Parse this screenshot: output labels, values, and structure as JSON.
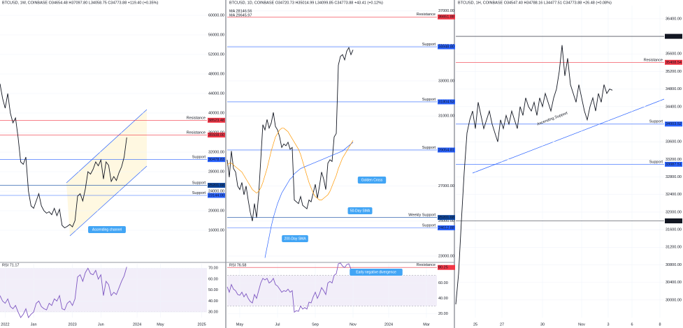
{
  "chart_data": [
    {
      "type": "line",
      "title": "BTCUSD, 1W, COINBASE O34654.48 H37097.80 L34058.75 C34773.88 +119.40 (+0.35%)",
      "xlim": [
        0,
        80
      ],
      "ylim": [
        10000,
        62000
      ],
      "grid": true,
      "yticks": [
        {
          "value": 16000,
          "label": "16000.00"
        },
        {
          "value": 20000,
          "label": "20000.00"
        },
        {
          "value": 24000,
          "label": "24000.00"
        },
        {
          "value": 28000,
          "label": "28000.00"
        },
        {
          "value": 32000,
          "label": "32000.00"
        },
        {
          "value": 36000,
          "label": "36000.00"
        },
        {
          "value": 40000,
          "label": "40000.00"
        },
        {
          "value": 44000,
          "label": "44000.00"
        },
        {
          "value": 48000,
          "label": "48000.00"
        },
        {
          "value": 52000,
          "label": "52000.00"
        },
        {
          "value": 56000,
          "label": "56000.00"
        },
        {
          "value": 60000,
          "label": "60000.00"
        }
      ],
      "series": [
        {
          "color": "#131722",
          "values": [
            46000,
            43000,
            41000,
            44000,
            40000,
            38000,
            39000,
            35000,
            30000,
            29500,
            31000,
            24000,
            21000,
            20500,
            22000,
            23500,
            21000,
            20000,
            19500,
            19800,
            19200,
            20500,
            19000,
            20300,
            17000,
            16500,
            16800,
            17200,
            16700,
            18000,
            23000,
            23500,
            22000,
            24500,
            28000,
            27500,
            28500,
            30000,
            29200,
            30400,
            26500,
            30000,
            29300,
            26000,
            27000,
            26200,
            27800,
            29000,
            31000,
            35000
          ]
        }
      ],
      "levels": [
        {
          "name": "Resistance",
          "value": 38523.48,
          "label": "38523.48",
          "color": "#f23645"
        },
        {
          "name": "Resistance",
          "value": 35508.0,
          "label": "35508.00",
          "color": "#f23645"
        },
        {
          "name": "Support",
          "value": 30478.83,
          "label": "30478.83",
          "color": "#2962ff"
        },
        {
          "name": "Support",
          "value": 25201.68,
          "label": "25201.68",
          "color": "#0d47a1"
        },
        {
          "name": "Support",
          "value": 23144.0,
          "label": "23144.00",
          "color": "#2962ff"
        }
      ],
      "annotations": [
        "Ascending channel"
      ]
    },
    {
      "type": "line",
      "xlim": [
        0,
        80
      ],
      "ylim": [
        25,
        74
      ],
      "grid": true,
      "band": [
        30,
        70
      ],
      "yticks": [
        {
          "value": 30,
          "label": "30.00"
        },
        {
          "value": 40,
          "label": "40.00"
        },
        {
          "value": 50,
          "label": "50.00"
        },
        {
          "value": 60,
          "label": "60.00"
        },
        {
          "value": 70,
          "label": "70.00"
        }
      ],
      "xticks": [
        {
          "value": 2,
          "label": "2022"
        },
        {
          "value": 13,
          "label": "Jan"
        },
        {
          "value": 28,
          "label": "2023"
        },
        {
          "value": 39,
          "label": "Jun"
        },
        {
          "value": 53,
          "label": "2024"
        },
        {
          "value": 62,
          "label": "May"
        },
        {
          "value": 78,
          "label": "2025"
        }
      ],
      "series": [
        {
          "name": "RSI 71.17",
          "color": "#7e57c2",
          "values": [
            45,
            40,
            38,
            42,
            35,
            33,
            36,
            30,
            25,
            28,
            33,
            25,
            28,
            30,
            38,
            40,
            35,
            33,
            32,
            38,
            36,
            42,
            40,
            45,
            33,
            32,
            38,
            40,
            36,
            42,
            62,
            64,
            58,
            66,
            70,
            65,
            64,
            68,
            60,
            64,
            45,
            58,
            55,
            45,
            48,
            46,
            52,
            58,
            63,
            71.17
          ]
        }
      ]
    },
    {
      "type": "line",
      "title": "BTCUSD, 1D, COINBASE O34720.73 H35014.99 L34099.85 C34773.88 +43.41 (+0.12%)",
      "xlim": [
        0,
        100
      ],
      "ylim": [
        22800,
        37300
      ],
      "grid": true,
      "yticks": [
        {
          "value": 23000,
          "label": "23000.00"
        },
        {
          "value": 25000,
          "label": "25000.00"
        },
        {
          "value": 27000,
          "label": "27000.00"
        },
        {
          "value": 29000,
          "label": "29000.00"
        },
        {
          "value": 31000,
          "label": "31000.00"
        },
        {
          "value": 33000,
          "label": "33000.00"
        },
        {
          "value": 35000,
          "label": "35000.00"
        },
        {
          "value": 37000,
          "label": "37000.00"
        }
      ],
      "series": [
        {
          "color": "#131722",
          "values": [
            28500,
            27500,
            29000,
            28000,
            27800,
            27000,
            26800,
            27200,
            26500,
            27000,
            26200,
            25500,
            25000,
            26000,
            25200,
            26500,
            28500,
            30500,
            30200,
            30800,
            30300,
            30600,
            31200,
            30400,
            30200,
            29800,
            29200,
            29400,
            29300,
            29500,
            29100,
            29200,
            26200,
            26100,
            26000,
            26400,
            25900,
            25800,
            25700,
            26200,
            26100,
            26600,
            27100,
            26300,
            27000,
            27800,
            27400,
            26800,
            28300,
            28500,
            28400,
            29800,
            30000,
            33900,
            34400,
            34500,
            34200,
            34700,
            34900,
            34500,
            34773.88
          ]
        },
        {
          "name": "MA 28146.56",
          "color": "#2962ff",
          "values": [
            null,
            null,
            null,
            null,
            null,
            null,
            null,
            null,
            null,
            null,
            null,
            null,
            null,
            null,
            null,
            null,
            null,
            null,
            22900,
            23500,
            24100,
            24700,
            25200,
            25600,
            26000,
            26300,
            26600,
            26800,
            27000,
            27200,
            27400,
            27500,
            27700,
            27800,
            27900,
            28000,
            28050,
            28100,
            28150,
            28200,
            28250,
            28300,
            28350,
            28400,
            28450,
            28500,
            28550,
            28600,
            28650,
            28700,
            28750,
            28800,
            28850,
            28900,
            28950,
            29000,
            29100,
            29200,
            29300,
            29400,
            29500
          ]
        },
        {
          "name": "MA 29645.97",
          "color": "#ff9800",
          "values": [
            28200,
            28300,
            28300,
            28200,
            28100,
            28000,
            27900,
            27800,
            27600,
            27400,
            27200,
            27000,
            26800,
            26700,
            26600,
            26700,
            26900,
            27200,
            27600,
            28000,
            28500,
            29000,
            29400,
            29800,
            30000,
            30200,
            30300,
            30300,
            30200,
            30100,
            29900,
            29700,
            29500,
            29300,
            29100,
            28800,
            28400,
            28000,
            27600,
            27200,
            26900,
            26600,
            26400,
            26300,
            26200,
            26200,
            26300,
            26400,
            26500,
            26700,
            27000,
            27300,
            27600,
            28000,
            28300,
            28600,
            28800,
            29000,
            29200,
            29400,
            29600
          ]
        }
      ],
      "levels": [
        {
          "name": "Resistance",
          "value": 36651.88,
          "label": "36651.88",
          "color": "#f23645"
        },
        {
          "name": "Support",
          "value": 34948.8,
          "label": "34948.80",
          "color": "#2962ff"
        },
        {
          "name": "Support",
          "value": 31804.53,
          "label": "31804.53",
          "color": "#2962ff"
        },
        {
          "name": "Support",
          "value": 29054.81,
          "label": "29054.81",
          "color": "#2962ff"
        },
        {
          "name": "Weekly Support",
          "value": 25201.68,
          "label": "25201.68",
          "color": "#0d47a1"
        },
        {
          "name": "Support",
          "value": 24612.88,
          "label": "24612.88",
          "color": "#2962ff"
        }
      ],
      "annotations": [
        "Golden Cross",
        "50-Day SMA",
        "200-Day SMA"
      ]
    },
    {
      "type": "line",
      "xlim": [
        0,
        100
      ],
      "ylim": [
        15,
        85
      ],
      "grid": true,
      "band": [
        30,
        70
      ],
      "yticks": [
        {
          "value": 20,
          "label": "20.00"
        },
        {
          "value": 40,
          "label": "40.00"
        },
        {
          "value": 60,
          "label": "60.00"
        },
        {
          "value": 80,
          "label": "80.00"
        }
      ],
      "xticks": [
        {
          "value": 6,
          "label": "May"
        },
        {
          "value": 24,
          "label": "Jul"
        },
        {
          "value": 42,
          "label": "Sep"
        },
        {
          "value": 60,
          "label": "Nov"
        },
        {
          "value": 77,
          "label": "2024"
        },
        {
          "value": 95,
          "label": "Mar"
        }
      ],
      "series": [
        {
          "name": "RSI 76.58",
          "color": "#7e57c2",
          "values": [
            55,
            48,
            58,
            52,
            50,
            45,
            44,
            48,
            42,
            46,
            40,
            36,
            34,
            45,
            40,
            50,
            60,
            66,
            64,
            66,
            60,
            62,
            66,
            58,
            56,
            52,
            48,
            50,
            49,
            52,
            48,
            50,
            22,
            24,
            23,
            30,
            26,
            28,
            26,
            35,
            34,
            42,
            48,
            40,
            46,
            54,
            50,
            45,
            60,
            62,
            60,
            70,
            72,
            85,
            86,
            82,
            80,
            84,
            85,
            78,
            76.58
          ]
        }
      ],
      "levels": [
        {
          "name": "Resistance",
          "value": 80.25,
          "label": "80.25",
          "color": "#f23645"
        }
      ],
      "annotations": [
        "Early negative divergence"
      ]
    },
    {
      "type": "line",
      "title": "BTCUSD, 1H, COINBASE O34547.40 H34788.16 L34477.51 C34773.88 +26.48 (+0.08%)",
      "xlim": [
        0,
        74.5
      ],
      "ylim": [
        29600,
        36700
      ],
      "grid": true,
      "yticks": [
        {
          "value": 30000,
          "label": "30000.00"
        },
        {
          "value": 30400,
          "label": "30400.00"
        },
        {
          "value": 30800,
          "label": "30800.00"
        },
        {
          "value": 31200,
          "label": "31200.00"
        },
        {
          "value": 31600,
          "label": "31600.00"
        },
        {
          "value": 32000,
          "label": "32000.00"
        },
        {
          "value": 32400,
          "label": "32400.00"
        },
        {
          "value": 32800,
          "label": "32800.00"
        },
        {
          "value": 33200,
          "label": "33200.00"
        },
        {
          "value": 33600,
          "label": "33600.00"
        },
        {
          "value": 34000,
          "label": "34000.00"
        },
        {
          "value": 34400,
          "label": "34400.00"
        },
        {
          "value": 34800,
          "label": "34800.00"
        },
        {
          "value": 35200,
          "label": "35200.00"
        },
        {
          "value": 35600,
          "label": "35600.00"
        },
        {
          "value": 36000,
          "label": "36000.00"
        },
        {
          "value": 36400,
          "label": "36400.00"
        }
      ],
      "xticks": [
        {
          "value": 7,
          "label": "25"
        },
        {
          "value": 16.5,
          "label": "27"
        },
        {
          "value": 31,
          "label": "30"
        },
        {
          "value": 45,
          "label": "Nov"
        },
        {
          "value": 54.5,
          "label": "3"
        },
        {
          "value": 63,
          "label": "6"
        },
        {
          "value": 73,
          "label": "8"
        }
      ],
      "series": [
        {
          "color": "#131722",
          "values": [
            29900,
            30600,
            31800,
            32900,
            33800,
            34100,
            34300,
            33900,
            34500,
            34200,
            33900,
            34100,
            34300,
            34000,
            33800,
            33600,
            34100,
            33900,
            34200,
            34000,
            34300,
            34100,
            33900,
            34400,
            34200,
            34600,
            34400,
            34300,
            34500,
            34200,
            34600,
            34400,
            34700,
            34500,
            34300,
            34600,
            34800,
            35200,
            35800,
            35100,
            35500,
            34900,
            34700,
            34500,
            34900,
            34600,
            34300,
            34100,
            34400,
            34600,
            34300,
            34700,
            34500,
            34900,
            34700,
            34800,
            34773.88
          ]
        }
      ],
      "levels": [
        {
          "value": 36000.0,
          "label": "36000.00",
          "color": "#131722"
        },
        {
          "name": "Resistance",
          "value": 35408.54,
          "label": "35408.54",
          "color": "#f23645"
        },
        {
          "name": "Support",
          "value": 34003.52,
          "label": "34003.52",
          "color": "#2962ff"
        },
        {
          "name": "Support",
          "value": 33087.51,
          "label": "33087.51",
          "color": "#2962ff"
        },
        {
          "value": 31800.0,
          "label": "31800.00",
          "color": "#131722"
        }
      ],
      "annotations": [
        "Ascending Support"
      ]
    }
  ]
}
